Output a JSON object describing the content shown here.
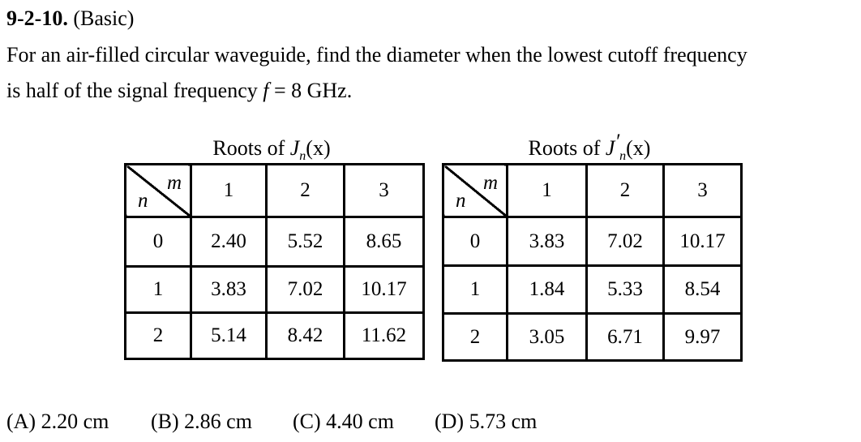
{
  "problem": {
    "number": "9-2-10.",
    "level": "(Basic)",
    "text_line1": "For an air-filled circular waveguide, find the diameter when the lowest cutoff frequency",
    "text_line2a": "is half of the signal frequency ",
    "text_var": "f",
    "text_line2b": " = 8 GHz."
  },
  "tables": [
    {
      "caption_prefix": "Roots of ",
      "func": "J",
      "sub": "n",
      "prime": "",
      "arg": "(x)",
      "row_label": "n",
      "col_label": "m",
      "columns": [
        "1",
        "2",
        "3"
      ],
      "rows": [
        {
          "n": "0",
          "values": [
            "2.40",
            "5.52",
            "8.65"
          ]
        },
        {
          "n": "1",
          "values": [
            "3.83",
            "7.02",
            "10.17"
          ]
        },
        {
          "n": "2",
          "values": [
            "5.14",
            "8.42",
            "11.62"
          ]
        }
      ]
    },
    {
      "caption_prefix": "Roots of ",
      "func": "J",
      "sub": "n",
      "prime": "′",
      "arg": "(x)",
      "row_label": "n",
      "col_label": "m",
      "columns": [
        "1",
        "2",
        "3"
      ],
      "rows": [
        {
          "n": "0",
          "values": [
            "3.83",
            "7.02",
            "10.17"
          ]
        },
        {
          "n": "1",
          "values": [
            "1.84",
            "5.33",
            "8.54"
          ]
        },
        {
          "n": "2",
          "values": [
            "3.05",
            "6.71",
            "9.97"
          ]
        }
      ]
    }
  ],
  "options": [
    "(A) 2.20 cm",
    "(B) 2.86 cm",
    "(C) 4.40 cm",
    "(D) 5.73 cm"
  ]
}
